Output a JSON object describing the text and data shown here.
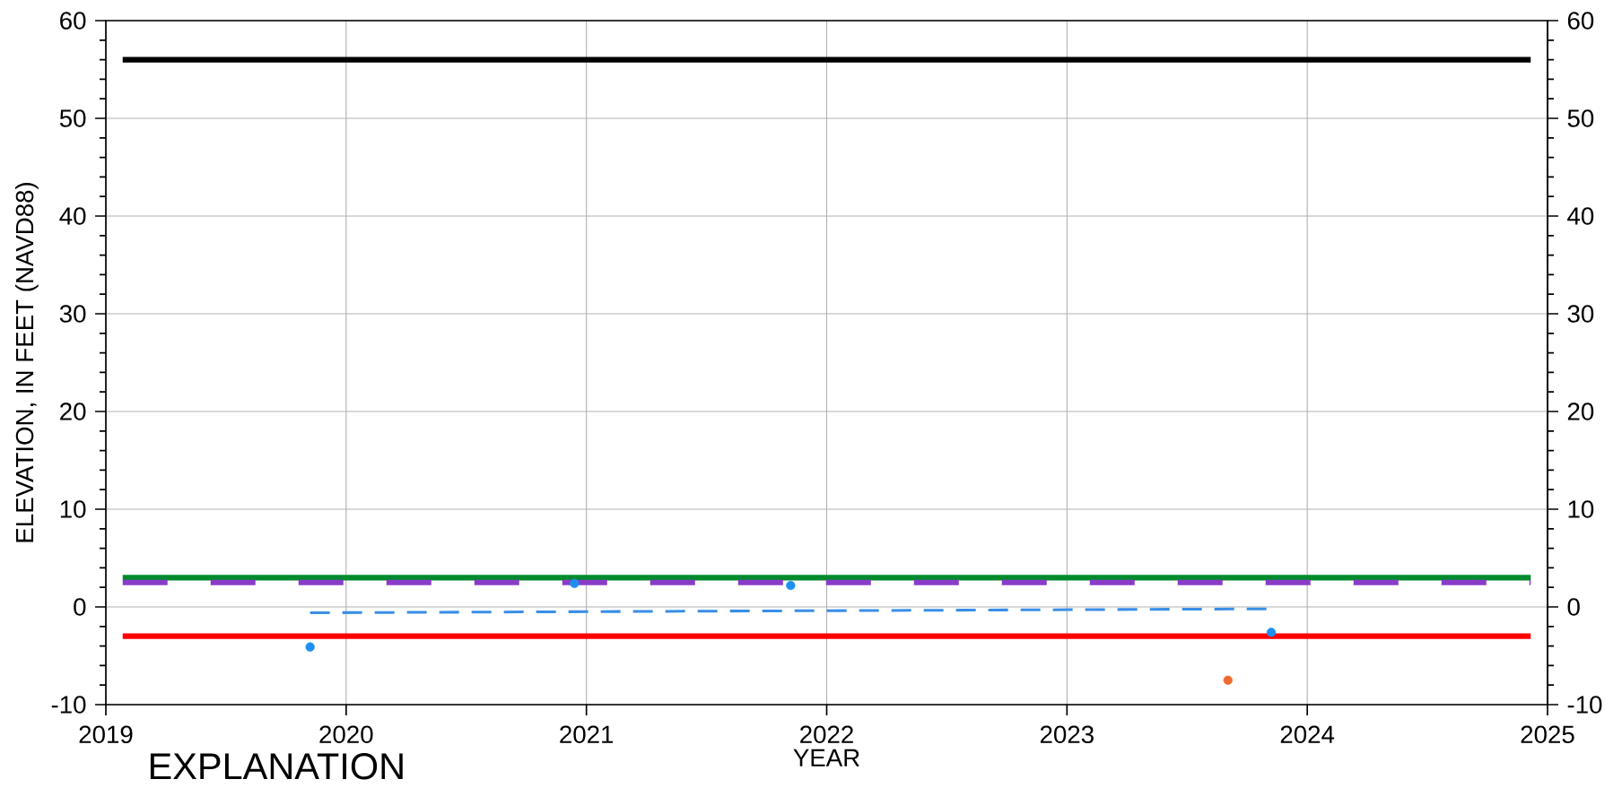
{
  "chart_data": {
    "type": "line",
    "xlabel": "YEAR",
    "ylabel": "ELEVATION, IN FEET (NAVD88)",
    "annotations": [
      "EXPLANATION"
    ],
    "xlim": [
      2019,
      2025
    ],
    "xticks": [
      2019,
      2020,
      2021,
      2022,
      2023,
      2024,
      2025
    ],
    "ylim": [
      -10,
      60
    ],
    "yticks": [
      -10,
      0,
      10,
      20,
      30,
      40,
      50,
      60
    ],
    "y2lim": [
      -10,
      60
    ],
    "y2ticks": [
      -10,
      0,
      10,
      20,
      30,
      40,
      50,
      60
    ],
    "grid": true,
    "series": [
      {
        "line_style": "solid",
        "color": "#000000",
        "x": [
          2019.07,
          2024.93
        ],
        "values": [
          56,
          56
        ]
      },
      {
        "line_style": "solid",
        "color": "#008a2e",
        "x": [
          2019.07,
          2024.93
        ],
        "values": [
          3,
          3
        ]
      },
      {
        "line_style": "dashed",
        "color": "#8a3cc8",
        "x": [
          2019.07,
          2024.93
        ],
        "values": [
          2.5,
          2.5
        ]
      },
      {
        "line_style": "solid",
        "color": "#ff0000",
        "x": [
          2019.07,
          2024.93
        ],
        "values": [
          -3,
          -3
        ]
      },
      {
        "line_style": "dashed",
        "color": "#3a8ee6",
        "x": [
          2019.85,
          2023.85
        ],
        "values": [
          -0.6,
          -0.2
        ]
      },
      {
        "type": "scatter",
        "marker": "circle",
        "color": "#1e8ff0",
        "x": [
          2019.85,
          2020.95,
          2021.85,
          2023.85
        ],
        "values": [
          -4.1,
          2.4,
          2.2,
          -2.6
        ]
      },
      {
        "type": "scatter",
        "marker": "circle",
        "color": "#f06a30",
        "x": [
          2023.67
        ],
        "values": [
          -7.5
        ]
      }
    ]
  }
}
